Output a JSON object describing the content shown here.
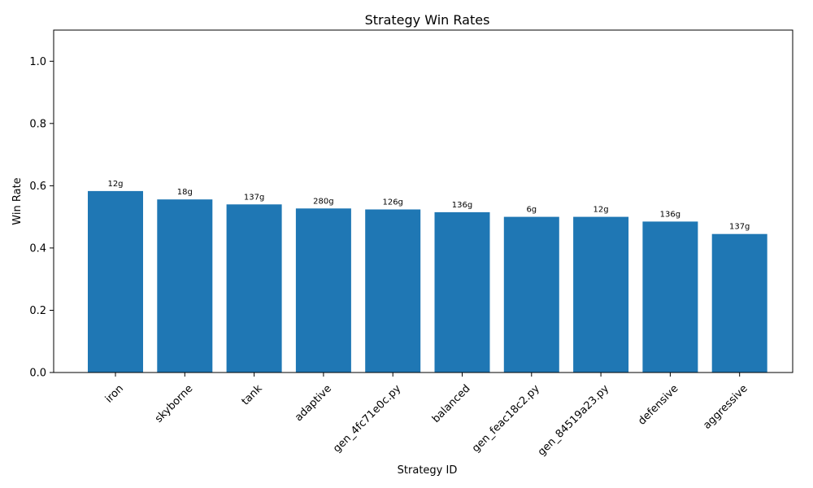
{
  "chart_data": {
    "type": "bar",
    "title": "Strategy Win Rates",
    "xlabel": "Strategy ID",
    "ylabel": "Win Rate",
    "ylim": [
      0,
      1.1
    ],
    "yticks": [
      "0.0",
      "0.2",
      "0.4",
      "0.6",
      "0.8",
      "1.0"
    ],
    "grid": false,
    "bar_color": "#1f77b4",
    "categories": [
      "iron",
      "skyborne",
      "tank",
      "adaptive",
      "gen_4fc71e0c.py",
      "balanced",
      "gen_feac18c2.py",
      "gen_84519a23.py",
      "defensive",
      "aggressive"
    ],
    "values": [
      0.583,
      0.556,
      0.54,
      0.527,
      0.524,
      0.515,
      0.5,
      0.5,
      0.485,
      0.445
    ],
    "labels": [
      "12g",
      "18g",
      "137g",
      "280g",
      "126g",
      "136g",
      "6g",
      "12g",
      "136g",
      "137g"
    ]
  }
}
